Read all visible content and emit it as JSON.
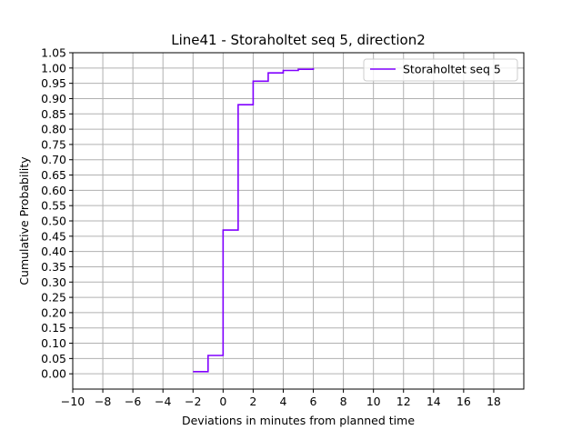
{
  "chart_data": {
    "type": "line",
    "title": "Line41 - Storaholtet seq 5, direction2",
    "xlabel": "Deviations in minutes from planned time",
    "ylabel": "Cumulative Probability",
    "xlim": [
      -10,
      20
    ],
    "ylim": [
      -0.05,
      1.05
    ],
    "x_ticks": [
      -10,
      -8,
      -6,
      -4,
      -2,
      0,
      2,
      4,
      6,
      8,
      10,
      12,
      14,
      16,
      18
    ],
    "x_tick_labels": [
      "−10",
      "−8",
      "−6",
      "−4",
      "−2",
      "0",
      "2",
      "4",
      "6",
      "8",
      "10",
      "12",
      "14",
      "16",
      "18"
    ],
    "y_ticks": [
      0.0,
      0.05,
      0.1,
      0.15,
      0.2,
      0.25,
      0.3,
      0.35,
      0.4,
      0.45,
      0.5,
      0.55,
      0.6,
      0.65,
      0.7,
      0.75,
      0.8,
      0.85,
      0.9,
      0.95,
      1.0,
      1.05
    ],
    "y_tick_labels": [
      "0.00",
      "0.05",
      "0.10",
      "0.15",
      "0.20",
      "0.25",
      "0.30",
      "0.35",
      "0.40",
      "0.45",
      "0.50",
      "0.55",
      "0.60",
      "0.65",
      "0.70",
      "0.75",
      "0.80",
      "0.85",
      "0.90",
      "0.95",
      "1.00",
      "1.05"
    ],
    "grid": true,
    "legend_position": "top-right",
    "step": "post",
    "series": [
      {
        "name": "Storaholtet seq 5",
        "color": "#8000ff",
        "x": [
          -2,
          -1,
          0,
          1,
          2,
          3,
          4,
          5,
          6
        ],
        "y": [
          0.007,
          0.06,
          0.47,
          0.88,
          0.957,
          0.984,
          0.992,
          0.996,
          1.0
        ]
      }
    ]
  }
}
